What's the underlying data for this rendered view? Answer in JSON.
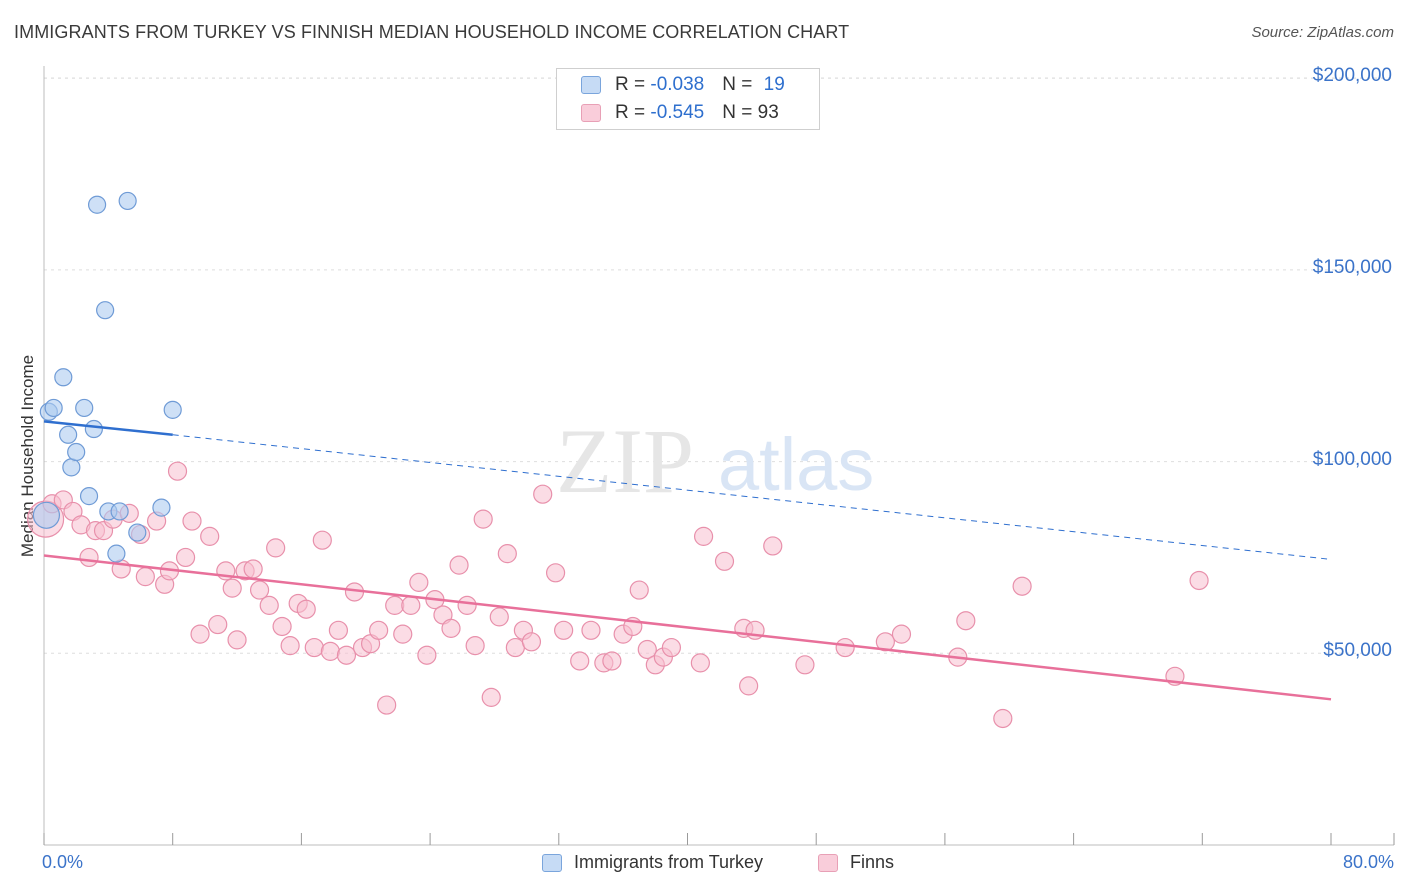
{
  "title": "IMMIGRANTS FROM TURKEY VS FINNISH MEDIAN HOUSEHOLD INCOME CORRELATION CHART",
  "source": "Source: ZipAtlas.com",
  "watermark": {
    "zip": "ZIP",
    "atlas": "atlas"
  },
  "legend_top": {
    "rows": [
      {
        "r_label": "R = ",
        "r_value": "-0.038",
        "n_label": "N = ",
        "n_value": "19",
        "color": "#aecbf0",
        "border": "#6a9ad8"
      },
      {
        "r_label": "R = ",
        "r_value": "-0.545",
        "n_label": "N = ",
        "n_value": "93",
        "color": "#f7bfd0",
        "border": "#e58aa6"
      }
    ]
  },
  "legend_bottom": [
    {
      "label": "Immigrants from Turkey",
      "color": "#c6dbf5",
      "border": "#7aa5dc"
    },
    {
      "label": "Finns",
      "color": "#f9cdda",
      "border": "#e8a0b6"
    }
  ],
  "chart_data": {
    "type": "scatter",
    "xlabel": "",
    "ylabel": "Median Household Income",
    "xlim": [
      0,
      80
    ],
    "ylim": [
      0,
      205000
    ],
    "x_tick_labels": [
      {
        "value": 0,
        "label": "0.0%"
      },
      {
        "value": 80,
        "label": "80.0%"
      }
    ],
    "y_tick_labels": [
      {
        "value": 50000,
        "label": "$50,000"
      },
      {
        "value": 100000,
        "label": "$100,000"
      },
      {
        "value": 150000,
        "label": "$150,000"
      },
      {
        "value": 200000,
        "label": "$200,000"
      }
    ],
    "series": [
      {
        "name": "Immigrants from Turkey",
        "color": "#aecbf0",
        "stroke": "#6f9bd6",
        "points": [
          [
            0.15,
            86000
          ],
          [
            0.3,
            113000
          ],
          [
            0.6,
            114000
          ],
          [
            1.2,
            122000
          ],
          [
            1.5,
            107000
          ],
          [
            1.7,
            98500
          ],
          [
            2.0,
            102500
          ],
          [
            2.5,
            114000
          ],
          [
            2.8,
            91000
          ],
          [
            3.1,
            108500
          ],
          [
            3.3,
            167000
          ],
          [
            3.8,
            139500
          ],
          [
            4.0,
            87000
          ],
          [
            4.5,
            76000
          ],
          [
            4.7,
            87000
          ],
          [
            5.2,
            168000
          ],
          [
            5.8,
            81500
          ],
          [
            7.3,
            88000
          ],
          [
            8.0,
            113500
          ]
        ],
        "trend": {
          "x0": 0,
          "y0": 110500,
          "x1": 8.0,
          "y1": 107000,
          "dash_x1": 80,
          "dash_y1": 74500
        },
        "trend_color": "#2f6fcf"
      },
      {
        "name": "Finns",
        "color": "#f7bfd0",
        "stroke": "#e890ab",
        "points": [
          [
            0.1,
            85000
          ],
          [
            0.5,
            89000
          ],
          [
            1.2,
            90000
          ],
          [
            1.8,
            87000
          ],
          [
            2.3,
            83500
          ],
          [
            2.8,
            75000
          ],
          [
            3.2,
            82000
          ],
          [
            3.7,
            82000
          ],
          [
            4.3,
            85000
          ],
          [
            4.8,
            72000
          ],
          [
            5.3,
            86500
          ],
          [
            6.0,
            81000
          ],
          [
            6.3,
            70000
          ],
          [
            7.0,
            84500
          ],
          [
            7.5,
            68000
          ],
          [
            7.8,
            71500
          ],
          [
            8.3,
            97500
          ],
          [
            8.8,
            75000
          ],
          [
            9.2,
            84500
          ],
          [
            9.7,
            55000
          ],
          [
            10.3,
            80500
          ],
          [
            10.8,
            57500
          ],
          [
            11.3,
            71500
          ],
          [
            11.7,
            67000
          ],
          [
            12.0,
            53500
          ],
          [
            12.5,
            71500
          ],
          [
            13.0,
            72000
          ],
          [
            13.4,
            66500
          ],
          [
            14.0,
            62500
          ],
          [
            14.4,
            77500
          ],
          [
            14.8,
            57000
          ],
          [
            15.3,
            52000
          ],
          [
            15.8,
            63000
          ],
          [
            16.3,
            61500
          ],
          [
            16.8,
            51500
          ],
          [
            17.3,
            79500
          ],
          [
            17.8,
            50500
          ],
          [
            18.3,
            56000
          ],
          [
            18.8,
            49500
          ],
          [
            19.3,
            66000
          ],
          [
            19.8,
            51500
          ],
          [
            20.3,
            52500
          ],
          [
            20.8,
            56000
          ],
          [
            21.3,
            36500
          ],
          [
            21.8,
            62500
          ],
          [
            22.3,
            55000
          ],
          [
            22.8,
            62500
          ],
          [
            23.3,
            68500
          ],
          [
            23.8,
            49500
          ],
          [
            24.3,
            64000
          ],
          [
            24.8,
            60000
          ],
          [
            25.3,
            56500
          ],
          [
            25.8,
            73000
          ],
          [
            26.3,
            62500
          ],
          [
            26.8,
            52000
          ],
          [
            27.3,
            85000
          ],
          [
            27.8,
            38500
          ],
          [
            28.3,
            59500
          ],
          [
            28.8,
            76000
          ],
          [
            29.3,
            51500
          ],
          [
            29.8,
            56000
          ],
          [
            30.3,
            53000
          ],
          [
            31.0,
            91500
          ],
          [
            31.8,
            71000
          ],
          [
            32.3,
            56000
          ],
          [
            33.3,
            48000
          ],
          [
            34.0,
            56000
          ],
          [
            34.8,
            47500
          ],
          [
            35.3,
            48000
          ],
          [
            36.0,
            55000
          ],
          [
            36.6,
            57000
          ],
          [
            37.0,
            66500
          ],
          [
            37.5,
            51000
          ],
          [
            38.0,
            47000
          ],
          [
            38.5,
            49000
          ],
          [
            39.0,
            51500
          ],
          [
            40.8,
            47500
          ],
          [
            41.0,
            80500
          ],
          [
            42.3,
            74000
          ],
          [
            43.5,
            56500
          ],
          [
            43.8,
            41500
          ],
          [
            44.2,
            56000
          ],
          [
            45.3,
            78000
          ],
          [
            47.3,
            47000
          ],
          [
            49.8,
            51500
          ],
          [
            52.3,
            53000
          ],
          [
            53.3,
            55000
          ],
          [
            56.8,
            49000
          ],
          [
            57.3,
            58500
          ],
          [
            59.6,
            33000
          ],
          [
            60.8,
            67500
          ],
          [
            70.3,
            44000
          ],
          [
            71.8,
            69000
          ]
        ],
        "trend": {
          "x0": 0,
          "y0": 75500,
          "x1": 80,
          "y1": 38000
        },
        "trend_color": "#e8709a"
      }
    ]
  }
}
